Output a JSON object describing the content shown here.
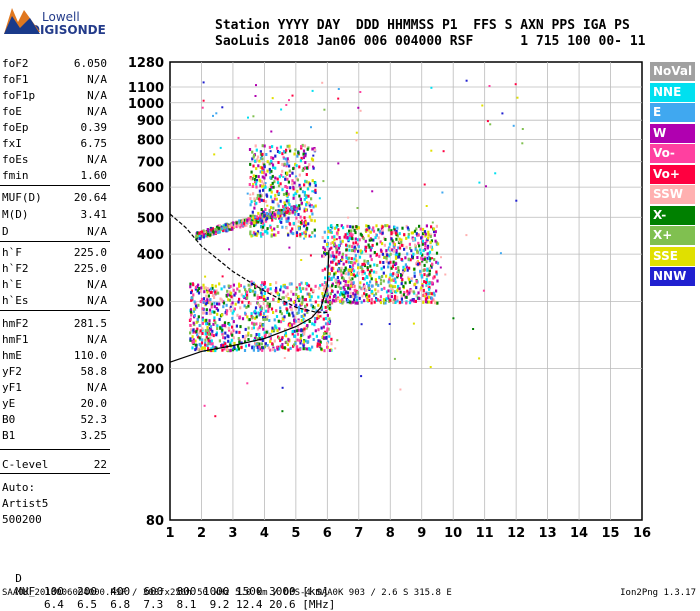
{
  "logo": {
    "line1": "Lowell",
    "line2": "DIGISONDE"
  },
  "header": {
    "line1": "Station YYYY DAY  DDD HHMMSS P1  FFS S AXN PPS IGA PS",
    "line2": "SaoLuis 2018 Jan06 006 004000 RSF      1 715 100 00- 11"
  },
  "params": [
    {
      "label": "foF2",
      "value": "6.050"
    },
    {
      "label": "foF1",
      "value": "N/A"
    },
    {
      "label": "foF1p",
      "value": "N/A"
    },
    {
      "label": "foE",
      "value": "N/A"
    },
    {
      "label": "foEp",
      "value": "0.39"
    },
    {
      "label": "fxI",
      "value": "6.75"
    },
    {
      "label": "foEs",
      "value": "N/A"
    },
    {
      "label": "fmin",
      "value": "1.60"
    },
    {
      "label": "MUF(D)",
      "value": "20.64"
    },
    {
      "label": "M(D)",
      "value": "3.41"
    },
    {
      "label": "D",
      "value": "N/A"
    },
    {
      "label": "h`F",
      "value": "225.0"
    },
    {
      "label": "h`F2",
      "value": "225.0"
    },
    {
      "label": "h`E",
      "value": "N/A"
    },
    {
      "label": "h`Es",
      "value": "N/A"
    },
    {
      "label": "hmF2",
      "value": "281.5"
    },
    {
      "label": "hmF1",
      "value": "N/A"
    },
    {
      "label": "hmE",
      "value": "110.0"
    },
    {
      "label": "yF2",
      "value": "58.8"
    },
    {
      "label": "yF1",
      "value": "N/A"
    },
    {
      "label": "yE",
      "value": "20.0"
    },
    {
      "label": "B0",
      "value": "52.3"
    },
    {
      "label": "B1",
      "value": "3.25"
    },
    {
      "label": "C-level",
      "value": "22"
    }
  ],
  "auto": {
    "line1": "Auto:",
    "line2": "Artist5",
    "line3": "500200"
  },
  "legend": [
    {
      "label": "NoVal",
      "color": "#a0a0a0"
    },
    {
      "label": "NNE",
      "color": "#00e0f0"
    },
    {
      "label": "E",
      "color": "#40a8f0"
    },
    {
      "label": "W",
      "color": "#b000b0"
    },
    {
      "label": "Vo-",
      "color": "#ff40a0"
    },
    {
      "label": "Vo+",
      "color": "#ff0040"
    },
    {
      "label": "SSW",
      "color": "#ffb0b0"
    },
    {
      "label": "X-",
      "color": "#008000"
    },
    {
      "label": "X+",
      "color": "#80c050"
    },
    {
      "label": "SSE",
      "color": "#e0e000"
    },
    {
      "label": "NNW",
      "color": "#2020d0"
    }
  ],
  "muf_table": {
    "d_label": "D",
    "d_values": "100  200  400  600  800 1000 1500 3000 [km]",
    "muf_label": "MUF",
    "muf_values": "6.4  6.5  6.8  7.3  8.1  9.2 12.4 20.6 [MHz]"
  },
  "footer": {
    "left": "SAA0K_2018006004000.RSF / 300fx256h 50 kHz 5.0 km / DPS-4 SAA0K 903 / 2.6 S 315.8 E",
    "right": "Ion2Png 1.3.17"
  },
  "chart_data": {
    "type": "scatter",
    "title": "",
    "xlabel": "",
    "ylabel": "",
    "xlim": [
      1,
      16
    ],
    "ylim": [
      80,
      1280
    ],
    "y_scale": "log",
    "grid": true,
    "x_ticks": [
      1,
      2,
      3,
      4,
      5,
      6,
      7,
      8,
      9,
      10,
      11,
      12,
      13,
      14,
      15,
      16
    ],
    "y_ticks": [
      80,
      200,
      300,
      400,
      500,
      600,
      700,
      800,
      900,
      1000,
      1100,
      1280
    ],
    "traces": [
      {
        "name": "virtual height trace",
        "color": "#000000",
        "x": [
          1.0,
          2.0,
          3.0,
          4.0,
          5.0,
          5.5,
          5.8,
          6.0,
          6.05
        ],
        "y": [
          208,
          222,
          230,
          240,
          258,
          272,
          290,
          330,
          410
        ]
      },
      {
        "name": "electron density profile",
        "color": "#000000",
        "x": [
          1.0,
          1.5,
          2.0,
          3.0,
          4.0,
          5.0,
          5.6,
          6.0,
          6.05
        ],
        "y": [
          510,
          470,
          420,
          360,
          320,
          290,
          282,
          281,
          282
        ]
      }
    ],
    "echo_regions": [
      {
        "fmin": 1.6,
        "fmax": 6.1,
        "hmin": 225,
        "hmax": 340
      },
      {
        "fmin": 3.5,
        "fmax": 5.6,
        "hmin": 450,
        "hmax": 780
      },
      {
        "fmin": 5.8,
        "fmax": 9.5,
        "hmin": 300,
        "hmax": 480
      },
      {
        "fmin": 1.8,
        "fmax": 5.0,
        "hmin": 440,
        "hmax": 530
      }
    ]
  }
}
